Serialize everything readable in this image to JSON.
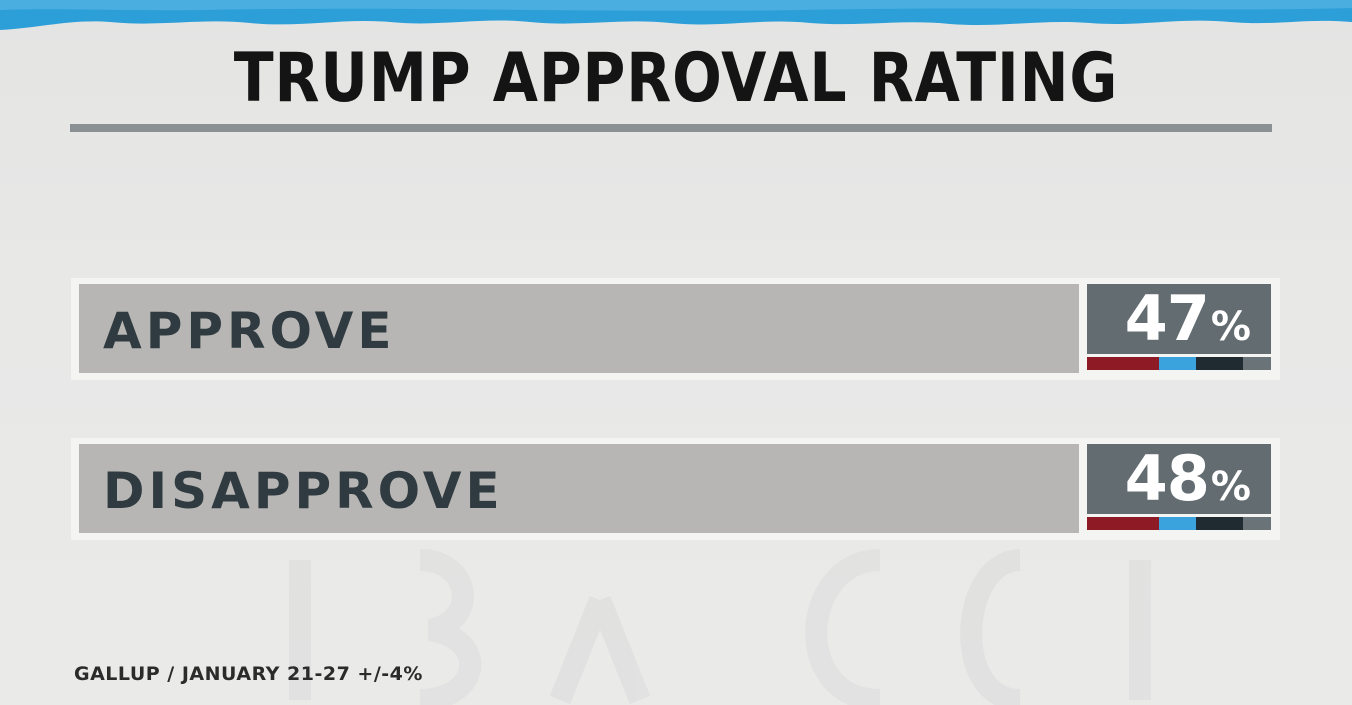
{
  "title": "TRUMP APPROVAL RATING",
  "source_line": "GALLUP / JANUARY 21-27 +/-4%",
  "colors": {
    "top_band": "#2d9fd8",
    "label_bar": "#b7b6b4",
    "label_text": "#2f3b40",
    "value_box": "#636c70",
    "stripe_red": "#8e1a25",
    "stripe_blue": "#3aa3dd",
    "stripe_dark": "#1f2b31",
    "stripe_gray": "#6a7478"
  },
  "chart_data": {
    "type": "table",
    "title": "TRUMP APPROVAL RATING",
    "rows": [
      {
        "label": "APPROVE",
        "value": 47,
        "value_text": "47",
        "unit": "%"
      },
      {
        "label": "DISAPPROVE",
        "value": 48,
        "value_text": "48",
        "unit": "%"
      }
    ]
  }
}
